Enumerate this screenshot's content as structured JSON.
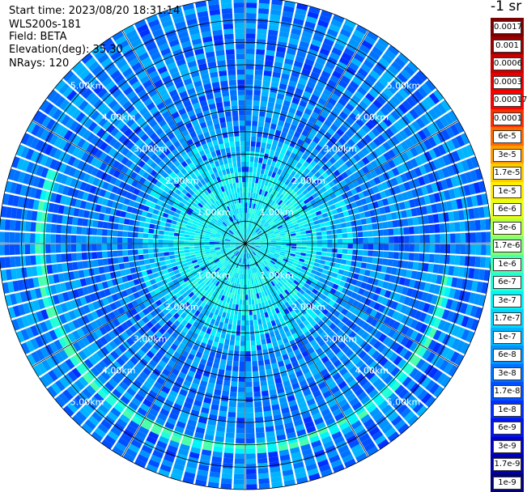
{
  "header": {
    "start_time": "Start time: 2023/08/20 18:31:14",
    "instrument": "WLS200s-181",
    "field": "Field: BETA",
    "elevation": "Elevation(deg): 35.30",
    "nrays": "NRays: 120"
  },
  "colorbar": {
    "unit": "-1 sr",
    "levels": [
      {
        "label": "0.0017",
        "color": "#7a0000"
      },
      {
        "label": "0.001",
        "color": "#990000"
      },
      {
        "label": "0.0006",
        "color": "#c80000"
      },
      {
        "label": "0.0003",
        "color": "#e80000"
      },
      {
        "label": "0.00017",
        "color": "#ff0000"
      },
      {
        "label": "0.0001",
        "color": "#ff3000"
      },
      {
        "label": "6e-5",
        "color": "#ff6a00"
      },
      {
        "label": "3e-5",
        "color": "#ff9c00"
      },
      {
        "label": "1.7e-5",
        "color": "#ffcc00"
      },
      {
        "label": "1e-5",
        "color": "#ffee00"
      },
      {
        "label": "6e-6",
        "color": "#eaff10"
      },
      {
        "label": "3e-6",
        "color": "#b4ff40"
      },
      {
        "label": "1.7e-6",
        "color": "#80ff76"
      },
      {
        "label": "1e-6",
        "color": "#4affac"
      },
      {
        "label": "6e-7",
        "color": "#20ffd8"
      },
      {
        "label": "3e-7",
        "color": "#00f4f8"
      },
      {
        "label": "1.7e-7",
        "color": "#00d6ff"
      },
      {
        "label": "1e-7",
        "color": "#00b4ff"
      },
      {
        "label": "6e-8",
        "color": "#0094ff"
      },
      {
        "label": "3e-8",
        "color": "#0072ff"
      },
      {
        "label": "1.7e-8",
        "color": "#0050ff"
      },
      {
        "label": "1e-8",
        "color": "#0030ff"
      },
      {
        "label": "6e-9",
        "color": "#0014ee"
      },
      {
        "label": "3e-9",
        "color": "#0000cc"
      },
      {
        "label": "1.7e-9",
        "color": "#0000a4"
      },
      {
        "label": "1e-9",
        "color": "#00007a"
      }
    ]
  },
  "chart_data": {
    "type": "heatmap",
    "projection": "polar",
    "rays": 120,
    "range_max_km": 5.5,
    "range_rings_km": [
      0.5,
      1.0,
      1.5,
      2.0,
      2.5,
      3.0,
      3.5,
      4.0,
      4.5,
      5.0,
      5.5
    ],
    "range_labels": [
      "1.00km",
      "2.00km",
      "3.00km",
      "4.00km",
      "5.00km"
    ],
    "azimuth_spokes_deg": [
      0,
      30,
      60,
      90,
      120,
      150,
      180,
      210,
      240,
      270,
      300,
      330
    ],
    "notable_features": [
      {
        "feature": "enhanced backscatter arc",
        "range_km": 4.6,
        "azimuth_deg": [
          100,
          290
        ]
      }
    ]
  }
}
